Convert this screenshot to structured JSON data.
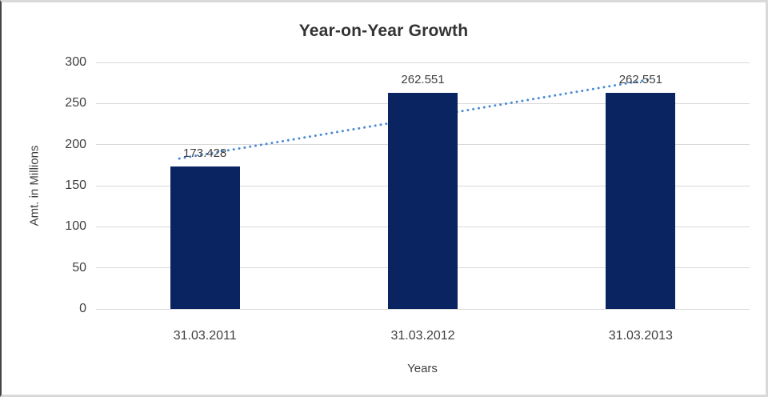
{
  "frame": {
    "background": "#ffffff",
    "border_color": "#d9d9d9",
    "left_edge_color": "#454545"
  },
  "chart_data": {
    "type": "bar",
    "title": "Year-on-Year Growth",
    "xlabel": "Years",
    "ylabel": "Amt. in Millions",
    "categories": [
      "31.03.2011",
      "31.03.2012",
      "31.03.2013"
    ],
    "values": [
      173.428,
      262.551,
      262.551
    ],
    "data_labels": [
      "173.428",
      "262.551",
      "262.551"
    ],
    "ylim": [
      0,
      300
    ],
    "yticks": [
      0,
      50,
      100,
      150,
      200,
      250,
      300
    ],
    "grid": "horizontal-on",
    "legend": "none",
    "bar_color": "#0a2462",
    "gridline_color": "#d9d9d9",
    "text_color": "#3f3f3f",
    "title_color": "#333333",
    "trendline": {
      "type": "linear",
      "style": "dotted",
      "color": "#4a8ad4"
    }
  }
}
